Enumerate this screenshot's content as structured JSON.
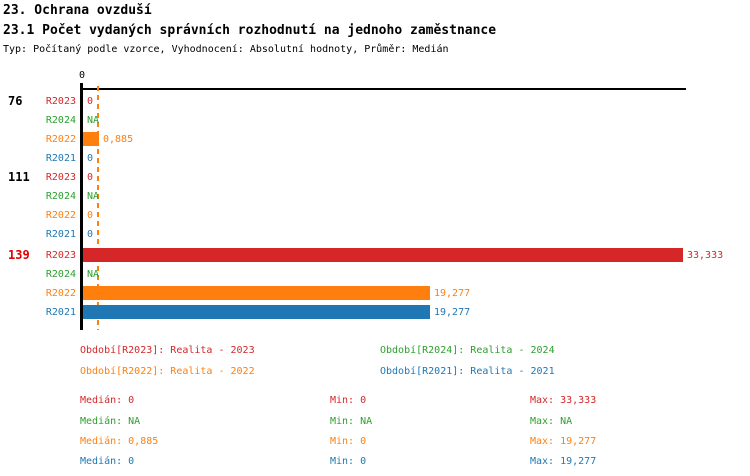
{
  "title": "23. Ochrana ovzduší",
  "subtitle": "23.1 Počet vydaných správních rozhodnutí na jednoho zaměstnance",
  "meta_line": "Typ: Počítaný podle vzorce, Vyhodnocení: Absolutní hodnoty, Průměr: Medián",
  "colors": {
    "R2023": "#d62728",
    "R2024": "#2ca02c",
    "R2022": "#ff7f0e",
    "R2021": "#1f77b4",
    "group_label_default": "#000000",
    "group_label_highlight": "#dd0000",
    "axis": "#000000"
  },
  "chart_data": {
    "type": "bar",
    "orientation": "horizontal",
    "title": "23.1 Počet vydaných správních rozhodnutí na jednoho zaměstnance",
    "x_axis": {
      "tick_labels": [
        "0"
      ],
      "xlim": [
        0,
        33.6
      ],
      "grid": false
    },
    "median_line": {
      "series": "R2022",
      "value": 0.885,
      "style": "dashed"
    },
    "groups": [
      {
        "label": "76",
        "highlight": false,
        "bars": [
          {
            "series": "R2023",
            "value": 0,
            "display": "0"
          },
          {
            "series": "R2024",
            "value": null,
            "display": "NA"
          },
          {
            "series": "R2022",
            "value": 0.885,
            "display": "0,885"
          },
          {
            "series": "R2021",
            "value": 0,
            "display": "0"
          }
        ]
      },
      {
        "label": "111",
        "highlight": false,
        "bars": [
          {
            "series": "R2023",
            "value": 0,
            "display": "0"
          },
          {
            "series": "R2024",
            "value": null,
            "display": "NA"
          },
          {
            "series": "R2022",
            "value": 0,
            "display": "0"
          },
          {
            "series": "R2021",
            "value": 0,
            "display": "0"
          }
        ]
      },
      {
        "label": "139",
        "highlight": true,
        "bars": [
          {
            "series": "R2023",
            "value": 33.333,
            "display": "33,333"
          },
          {
            "series": "R2024",
            "value": null,
            "display": "NA"
          },
          {
            "series": "R2022",
            "value": 19.277,
            "display": "19,277"
          },
          {
            "series": "R2021",
            "value": 19.277,
            "display": "19,277"
          }
        ]
      }
    ],
    "legend": [
      {
        "series": "R2023",
        "label": "Období[R2023]: Realita - 2023"
      },
      {
        "series": "R2024",
        "label": "Období[R2024]: Realita - 2024"
      },
      {
        "series": "R2022",
        "label": "Období[R2022]: Realita - 2022"
      },
      {
        "series": "R2021",
        "label": "Období[R2021]: Realita - 2021"
      }
    ],
    "stats": [
      {
        "series": "R2023",
        "median": "Medián: 0",
        "min": "Min: 0",
        "max": "Max: 33,333"
      },
      {
        "series": "R2024",
        "median": "Medián: NA",
        "min": "Min: NA",
        "max": "Max: NA"
      },
      {
        "series": "R2022",
        "median": "Medián: 0,885",
        "min": "Min: 0",
        "max": "Max: 19,277"
      },
      {
        "series": "R2021",
        "median": "Medián: 0",
        "min": "Min: 0",
        "max": "Max: 19,277"
      }
    ]
  }
}
